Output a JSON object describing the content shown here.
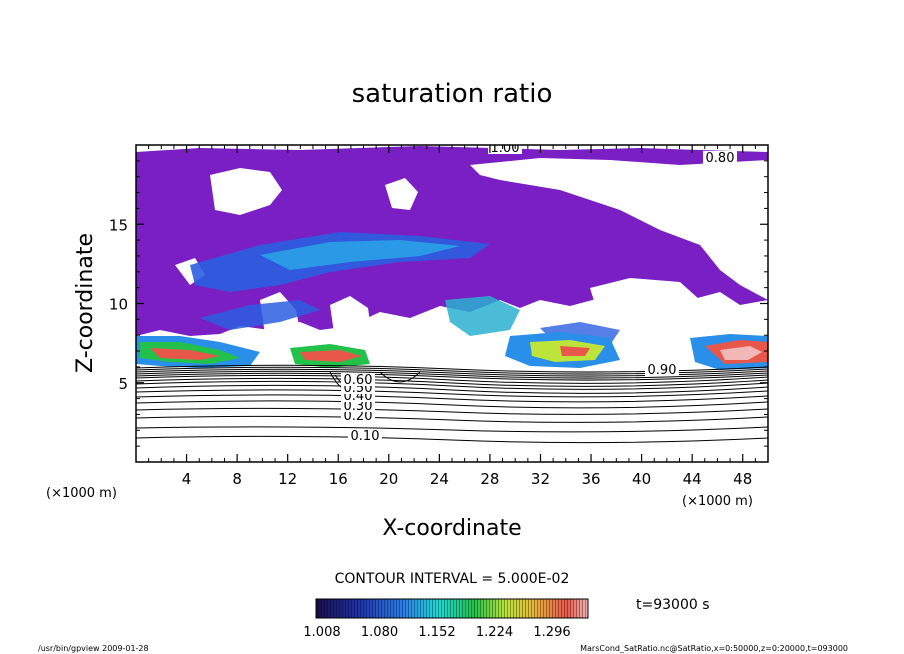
{
  "chart_data": {
    "type": "heatmap",
    "title": "saturation ratio",
    "xlabel": "X-coordinate",
    "ylabel": "Z-coordinate",
    "x_unit_left": "(×1000 m)",
    "x_unit_right": "(×1000 m)",
    "xlim": [
      0,
      50
    ],
    "ylim": [
      0,
      20
    ],
    "x_ticks": [
      "4",
      "8",
      "12",
      "16",
      "20",
      "24",
      "28",
      "32",
      "36",
      "40",
      "44",
      "48"
    ],
    "y_ticks": [
      "5",
      "10",
      "15"
    ],
    "contour_interval_text": "CONTOUR INTERVAL = 5.000E-02",
    "colorbar_ticks": [
      "1.008",
      "1.080",
      "1.152",
      "1.224",
      "1.296"
    ],
    "colorbar_colors": [
      "#1a0f4a",
      "#1f2fa8",
      "#2a7fe8",
      "#1fd9d9",
      "#22c24a",
      "#bde43a",
      "#e8b83a",
      "#e8584a",
      "#f2b8b8"
    ],
    "contour_labels": [
      "0.10",
      "0.20",
      "0.30",
      "0.40",
      "0.50",
      "0.60",
      "0.90",
      "1.00",
      "0.80"
    ],
    "time_label": "t=93000 s",
    "footer_left": "/usr/bin/gpview  2009-01-28",
    "footer_right": "MarsCond_SatRatio.nc@SatRatio,x=0:50000,z=0:20000,t=093000",
    "fill_color_sat_1": "#7a1fc4",
    "fill_color_high": "#e8584a"
  }
}
